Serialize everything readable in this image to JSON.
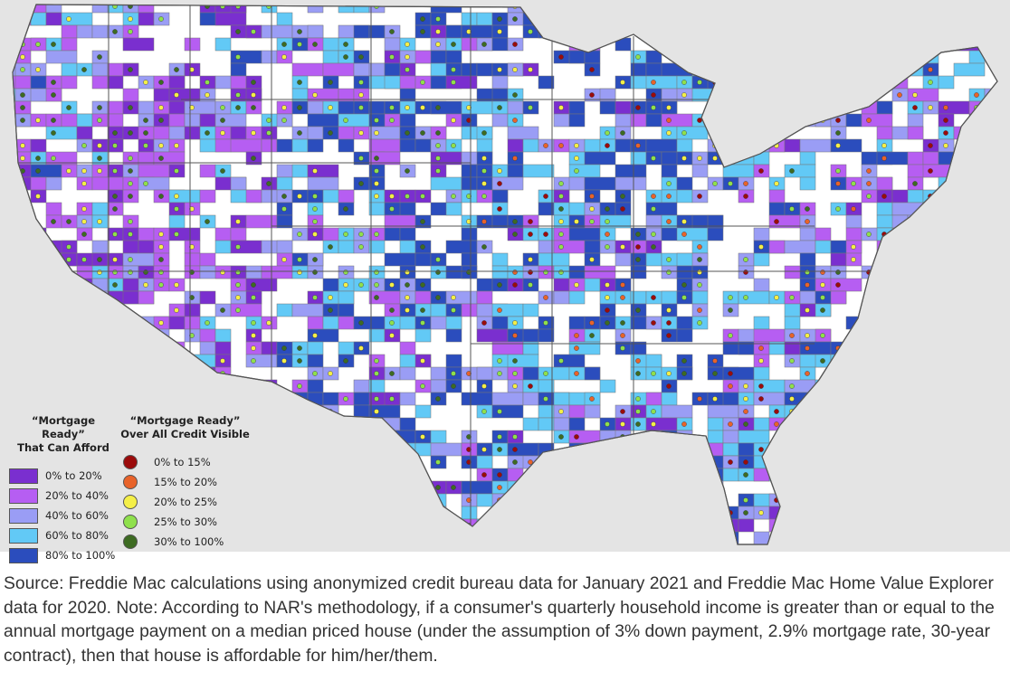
{
  "legend": {
    "afford": {
      "title_line1": "“Mortgage Ready”",
      "title_line2": "That Can Afford",
      "items": [
        {
          "label": "0% to 20%",
          "color": "#7a2fcf"
        },
        {
          "label": "20% to 40%",
          "color": "#b65ef2"
        },
        {
          "label": "40% to 60%",
          "color": "#9a9df5"
        },
        {
          "label": "60% to 80%",
          "color": "#62c9f6"
        },
        {
          "label": "80% to 100%",
          "color": "#2b4dbd"
        }
      ]
    },
    "visible": {
      "title_line1": "“Mortgage Ready”",
      "title_line2": "Over All Credit Visible",
      "items": [
        {
          "label": "0% to 15%",
          "color": "#9b0b0b"
        },
        {
          "label": "15% to 20%",
          "color": "#e8632a"
        },
        {
          "label": "20% to 25%",
          "color": "#f4ef48"
        },
        {
          "label": "25% to 30%",
          "color": "#8fe04c"
        },
        {
          "label": "30% to 100%",
          "color": "#3d6b22"
        }
      ]
    }
  },
  "caption": "Source: Freddie Mac calculations using anonymized credit bureau data for January 2021 and Freddie Mac Home Value Explorer data for 2020. Note: According to NAR's methodology, if a consumer's quarterly household income is greater than or equal to the annual mortgage payment on a median priced house (under the assumption of 3% down payment, 2.9% mortgage rate, 30-year contract), then that house is affordable for him/her/them."
}
